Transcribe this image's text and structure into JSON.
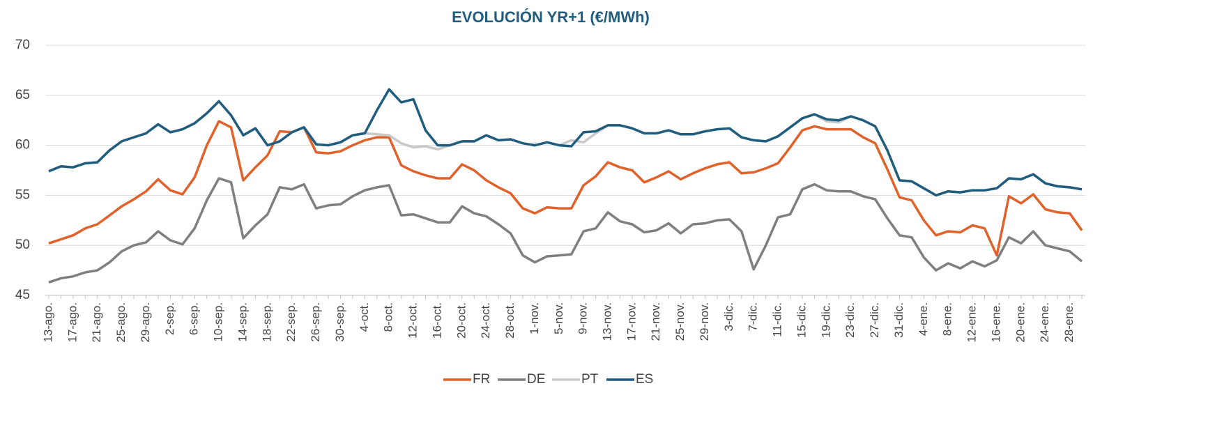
{
  "chart_data": {
    "type": "line",
    "title": "EVOLUCIÓN YR+1  (€/MWh)",
    "categories": [
      "13-ago.",
      null,
      "17-ago.",
      null,
      "21-ago.",
      null,
      "25-ago.",
      null,
      "29-ago.",
      null,
      "2-sep.",
      null,
      "6-sep.",
      null,
      "10-sep.",
      null,
      "14-sep.",
      null,
      "18-sep.",
      null,
      "22-sep.",
      null,
      "26-sep.",
      null,
      "30-sep.",
      null,
      "4-oct.",
      null,
      "8-oct.",
      null,
      "12-oct.",
      null,
      "16-oct.",
      null,
      "20-oct.",
      null,
      "24-oct.",
      null,
      "28-oct.",
      null,
      "1-nov.",
      null,
      "5-nov.",
      null,
      "9-nov.",
      null,
      "13-nov.",
      null,
      "17-nov.",
      null,
      "21-nov.",
      null,
      "25-nov.",
      null,
      "29-nov.",
      null,
      "3-dic.",
      null,
      "7-dic.",
      null,
      "11-dic.",
      null,
      "15-dic.",
      null,
      "19-dic.",
      null,
      "23-dic.",
      null,
      "27-dic.",
      null,
      "31-dic.",
      null,
      "4-ene.",
      null,
      "8-ene.",
      null,
      "12-ene.",
      null,
      "16-ene.",
      null,
      "20-ene.",
      null,
      "24-ene.",
      null,
      "28-ene.",
      null
    ],
    "series": [
      {
        "name": "FR",
        "color": "#e0622a",
        "values": [
          50.2,
          50.6,
          51,
          51.7,
          52.1,
          53,
          53.9,
          54.6,
          55.4,
          56.6,
          55.5,
          55.1,
          56.8,
          60,
          62.4,
          61.8,
          56.5,
          57.8,
          59,
          61.4,
          61.3,
          61.8,
          59.3,
          59.2,
          59.4,
          60,
          60.5,
          60.8,
          60.8,
          58,
          57.4,
          57,
          56.7,
          56.7,
          58.1,
          57.5,
          56.5,
          55.8,
          55.2,
          53.7,
          53.2,
          53.8,
          53.7,
          53.7,
          56,
          56.9,
          58.3,
          57.8,
          57.5,
          56.3,
          56.8,
          57.4,
          56.6,
          57.2,
          57.7,
          58.1,
          58.3,
          57.2,
          57.3,
          57.7,
          58.2,
          59.8,
          61.5,
          61.9,
          61.6,
          61.6,
          61.6,
          60.8,
          60.2,
          57.6,
          54.8,
          54.5,
          52.5,
          51,
          51.4,
          51.3,
          52,
          51.7,
          49,
          54.9,
          54.2,
          55.1,
          53.6,
          53.3,
          53.2,
          51.5
        ]
      },
      {
        "name": "DE",
        "color": "#7f7f7f",
        "values": [
          46.3,
          46.7,
          46.9,
          47.3,
          47.5,
          48.3,
          49.4,
          50,
          50.3,
          51.4,
          50.5,
          50.1,
          51.7,
          54.5,
          56.7,
          56.3,
          50.7,
          52,
          53.1,
          55.8,
          55.6,
          56.1,
          53.7,
          54,
          54.1,
          54.9,
          55.5,
          55.8,
          56,
          53,
          53.1,
          52.7,
          52.3,
          52.3,
          53.9,
          53.2,
          52.9,
          52.1,
          51.2,
          49,
          48.3,
          48.9,
          49,
          49.1,
          51.4,
          51.7,
          53.3,
          52.4,
          52.1,
          51.3,
          51.5,
          52.2,
          51.2,
          52.1,
          52.2,
          52.5,
          52.6,
          51.4,
          47.6,
          50,
          52.8,
          53.1,
          55.6,
          56.1,
          55.5,
          55.4,
          55.4,
          54.9,
          54.6,
          52.7,
          51,
          50.8,
          48.8,
          47.5,
          48.2,
          47.7,
          48.4,
          47.9,
          48.5,
          50.8,
          50.2,
          51.4,
          50,
          49.7,
          49.4,
          48.4
        ]
      },
      {
        "name": "PT",
        "color": "#c8c8c8",
        "values": [
          57.4,
          57.9,
          57.8,
          58.2,
          58.3,
          59.5,
          60.4,
          60.8,
          61.2,
          62.1,
          61.3,
          61.6,
          62.2,
          63.2,
          64.4,
          63,
          61,
          61.7,
          60,
          60.4,
          61.3,
          61.8,
          60.1,
          60,
          60.3,
          61,
          61.2,
          61.1,
          61,
          60.2,
          59.8,
          59.9,
          59.6,
          60,
          60.4,
          60.4,
          61,
          60.5,
          60.6,
          60.2,
          60,
          60.3,
          60,
          60.5,
          60.3,
          61.2,
          62,
          62,
          61.7,
          61.2,
          61.2,
          61.5,
          61.1,
          61.1,
          61.4,
          61.6,
          61.7,
          60.8,
          60.5,
          60.4,
          60.9,
          61.8,
          62.7,
          63.1,
          62.4,
          62.3,
          62.9,
          62.5,
          61.9,
          59.5,
          56.5,
          56.4,
          55.7,
          55,
          55.4,
          55.3,
          55.5,
          55.5,
          55.7,
          56.7,
          56.6,
          57.1,
          56.2,
          55.9,
          55.8,
          55.6
        ]
      },
      {
        "name": "ES",
        "color": "#1f5c7e",
        "values": [
          57.4,
          57.9,
          57.8,
          58.2,
          58.3,
          59.5,
          60.4,
          60.8,
          61.2,
          62.1,
          61.3,
          61.6,
          62.2,
          63.2,
          64.4,
          63,
          61,
          61.7,
          60,
          60.4,
          61.3,
          61.8,
          60.1,
          60,
          60.3,
          61,
          61.2,
          63.5,
          65.6,
          64.3,
          64.6,
          61.5,
          60,
          60,
          60.4,
          60.4,
          61,
          60.5,
          60.6,
          60.2,
          60,
          60.3,
          60,
          59.9,
          61.3,
          61.4,
          62,
          62,
          61.7,
          61.2,
          61.2,
          61.5,
          61.1,
          61.1,
          61.4,
          61.6,
          61.7,
          60.8,
          60.5,
          60.4,
          60.9,
          61.8,
          62.7,
          63.1,
          62.6,
          62.5,
          62.9,
          62.5,
          61.9,
          59.5,
          56.5,
          56.4,
          55.7,
          55,
          55.4,
          55.3,
          55.5,
          55.5,
          55.7,
          56.7,
          56.6,
          57.1,
          56.2,
          55.9,
          55.8,
          55.6
        ]
      }
    ],
    "ylim": [
      45,
      70
    ],
    "yticks": [
      45,
      50,
      55,
      60,
      65,
      70
    ],
    "grid": true,
    "legend": "bottom"
  }
}
